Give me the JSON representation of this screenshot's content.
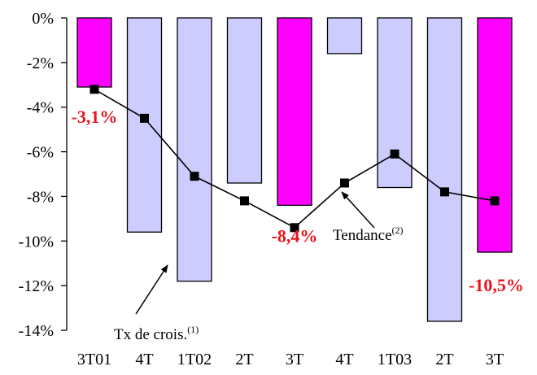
{
  "chart_data": {
    "type": "bar",
    "categories": [
      "3T01",
      "4T",
      "1T02",
      "2T",
      "3T",
      "4T",
      "1T03",
      "2T",
      "3T"
    ],
    "series": [
      {
        "name": "Tx de crois.",
        "kind": "bar",
        "values": [
          -3.1,
          -9.6,
          -11.8,
          -7.4,
          -8.4,
          -1.6,
          -7.6,
          -13.6,
          -10.5
        ],
        "highlighted": [
          true,
          false,
          false,
          false,
          true,
          false,
          false,
          false,
          true
        ]
      },
      {
        "name": "Tendance",
        "kind": "line",
        "values": [
          -3.2,
          -4.5,
          -7.1,
          -8.2,
          -9.4,
          -7.4,
          -6.1,
          -7.8,
          -8.2
        ]
      }
    ],
    "ylim": [
      -14,
      0
    ],
    "yticks": [
      0,
      -2,
      -4,
      -6,
      -8,
      -10,
      -12,
      -14
    ],
    "ytick_labels": [
      "0%",
      "-2%",
      "-4%",
      "-6%",
      "-8%",
      "-10%",
      "-12%",
      "-14%"
    ],
    "data_labels": [
      {
        "index": 0,
        "text": "-3,1%"
      },
      {
        "index": 4,
        "text": "-8,4%"
      },
      {
        "index": 8,
        "text": "-10,5%"
      }
    ],
    "annotations": [
      {
        "text": "Tx de crois.",
        "sup": "(1)",
        "points_to": "series 0, index 2"
      },
      {
        "text": "Tendance",
        "sup": "(2)",
        "points_to": "series 1, index 5"
      }
    ],
    "colors": {
      "highlight_bar": "#ff00ff",
      "normal_bar": "#ccccff",
      "bar_edge": "#000000",
      "line": "#000000",
      "data_label": "#e8141e"
    },
    "grid": false,
    "legend": "none"
  }
}
